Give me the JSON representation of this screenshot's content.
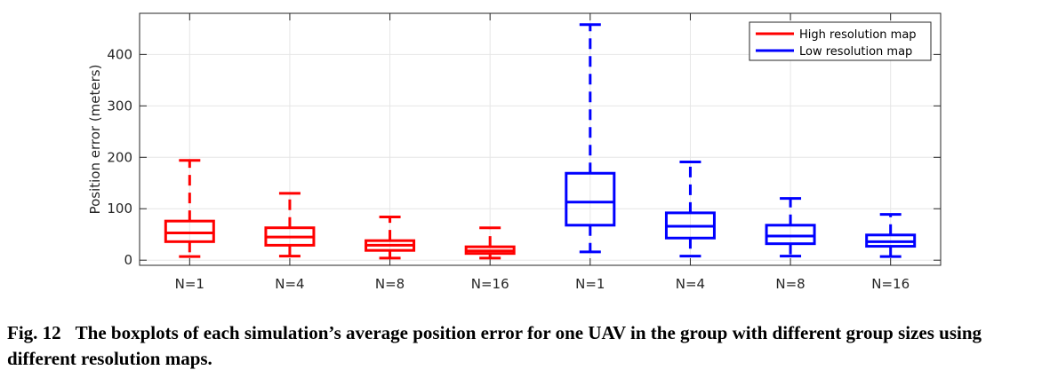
{
  "chart_data": {
    "type": "boxplot",
    "ylabel": "Position error (meters)",
    "xlabel": "",
    "ylim": [
      -10,
      480
    ],
    "yticks": [
      0,
      100,
      200,
      300,
      400
    ],
    "grid": true,
    "legend_position": "top-right",
    "categories": [
      "N=1",
      "N=4",
      "N=8",
      "N=16",
      "N=1",
      "N=4",
      "N=8",
      "N=16"
    ],
    "series": [
      {
        "name": "High resolution map",
        "color": "#ff0000",
        "boxes": [
          {
            "label": "N=1",
            "min": 7,
            "q1": 36,
            "median": 53,
            "q3": 76,
            "max": 194
          },
          {
            "label": "N=4",
            "min": 8,
            "q1": 29,
            "median": 45,
            "q3": 63,
            "max": 130
          },
          {
            "label": "N=8",
            "min": 4,
            "q1": 19,
            "median": 29,
            "q3": 38,
            "max": 84
          },
          {
            "label": "N=16",
            "min": 4,
            "q1": 13,
            "median": 18,
            "q3": 26,
            "max": 63
          }
        ]
      },
      {
        "name": "Low resolution map",
        "color": "#0000ff",
        "boxes": [
          {
            "label": "N=1",
            "min": 16,
            "q1": 68,
            "median": 113,
            "q3": 169,
            "max": 458
          },
          {
            "label": "N=4",
            "min": 8,
            "q1": 43,
            "median": 66,
            "q3": 92,
            "max": 191
          },
          {
            "label": "N=8",
            "min": 8,
            "q1": 32,
            "median": 47,
            "q3": 68,
            "max": 120
          },
          {
            "label": "N=16",
            "min": 7,
            "q1": 27,
            "median": 36,
            "q3": 49,
            "max": 89
          }
        ]
      }
    ]
  },
  "caption": {
    "label": "Fig. 12",
    "text": "The boxplots of each simulation’s average position error for one UAV in the group with different group sizes using different resolution maps."
  }
}
